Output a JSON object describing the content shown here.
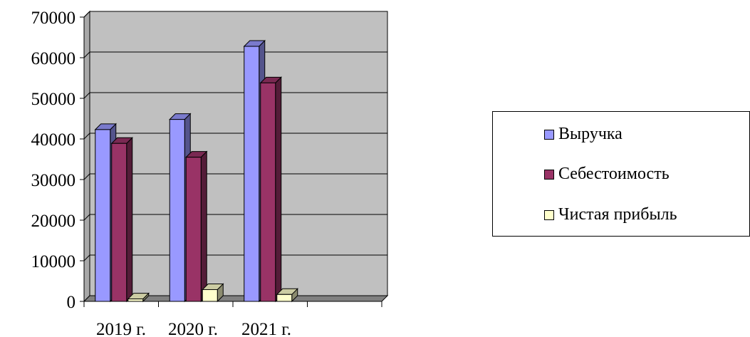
{
  "chart_data": {
    "type": "bar",
    "categories": [
      "2019 г.",
      "2020 г.",
      "2021 г."
    ],
    "series": [
      {
        "name": "Выручка",
        "values": [
          42300,
          44800,
          62800
        ],
        "color": "#9999ff"
      },
      {
        "name": "Себестоимость",
        "values": [
          38900,
          35500,
          53800
        ],
        "color": "#993366"
      },
      {
        "name": "Чистая прибыль",
        "values": [
          600,
          2900,
          1700
        ],
        "color": "#ffffcc"
      }
    ],
    "ylim": [
      0,
      70000
    ],
    "yticks": [
      "0",
      "10000",
      "20000",
      "30000",
      "40000",
      "50000",
      "60000",
      "70000"
    ],
    "grid": true,
    "legend_position": "right",
    "wall_color": "#c0c0c0"
  }
}
